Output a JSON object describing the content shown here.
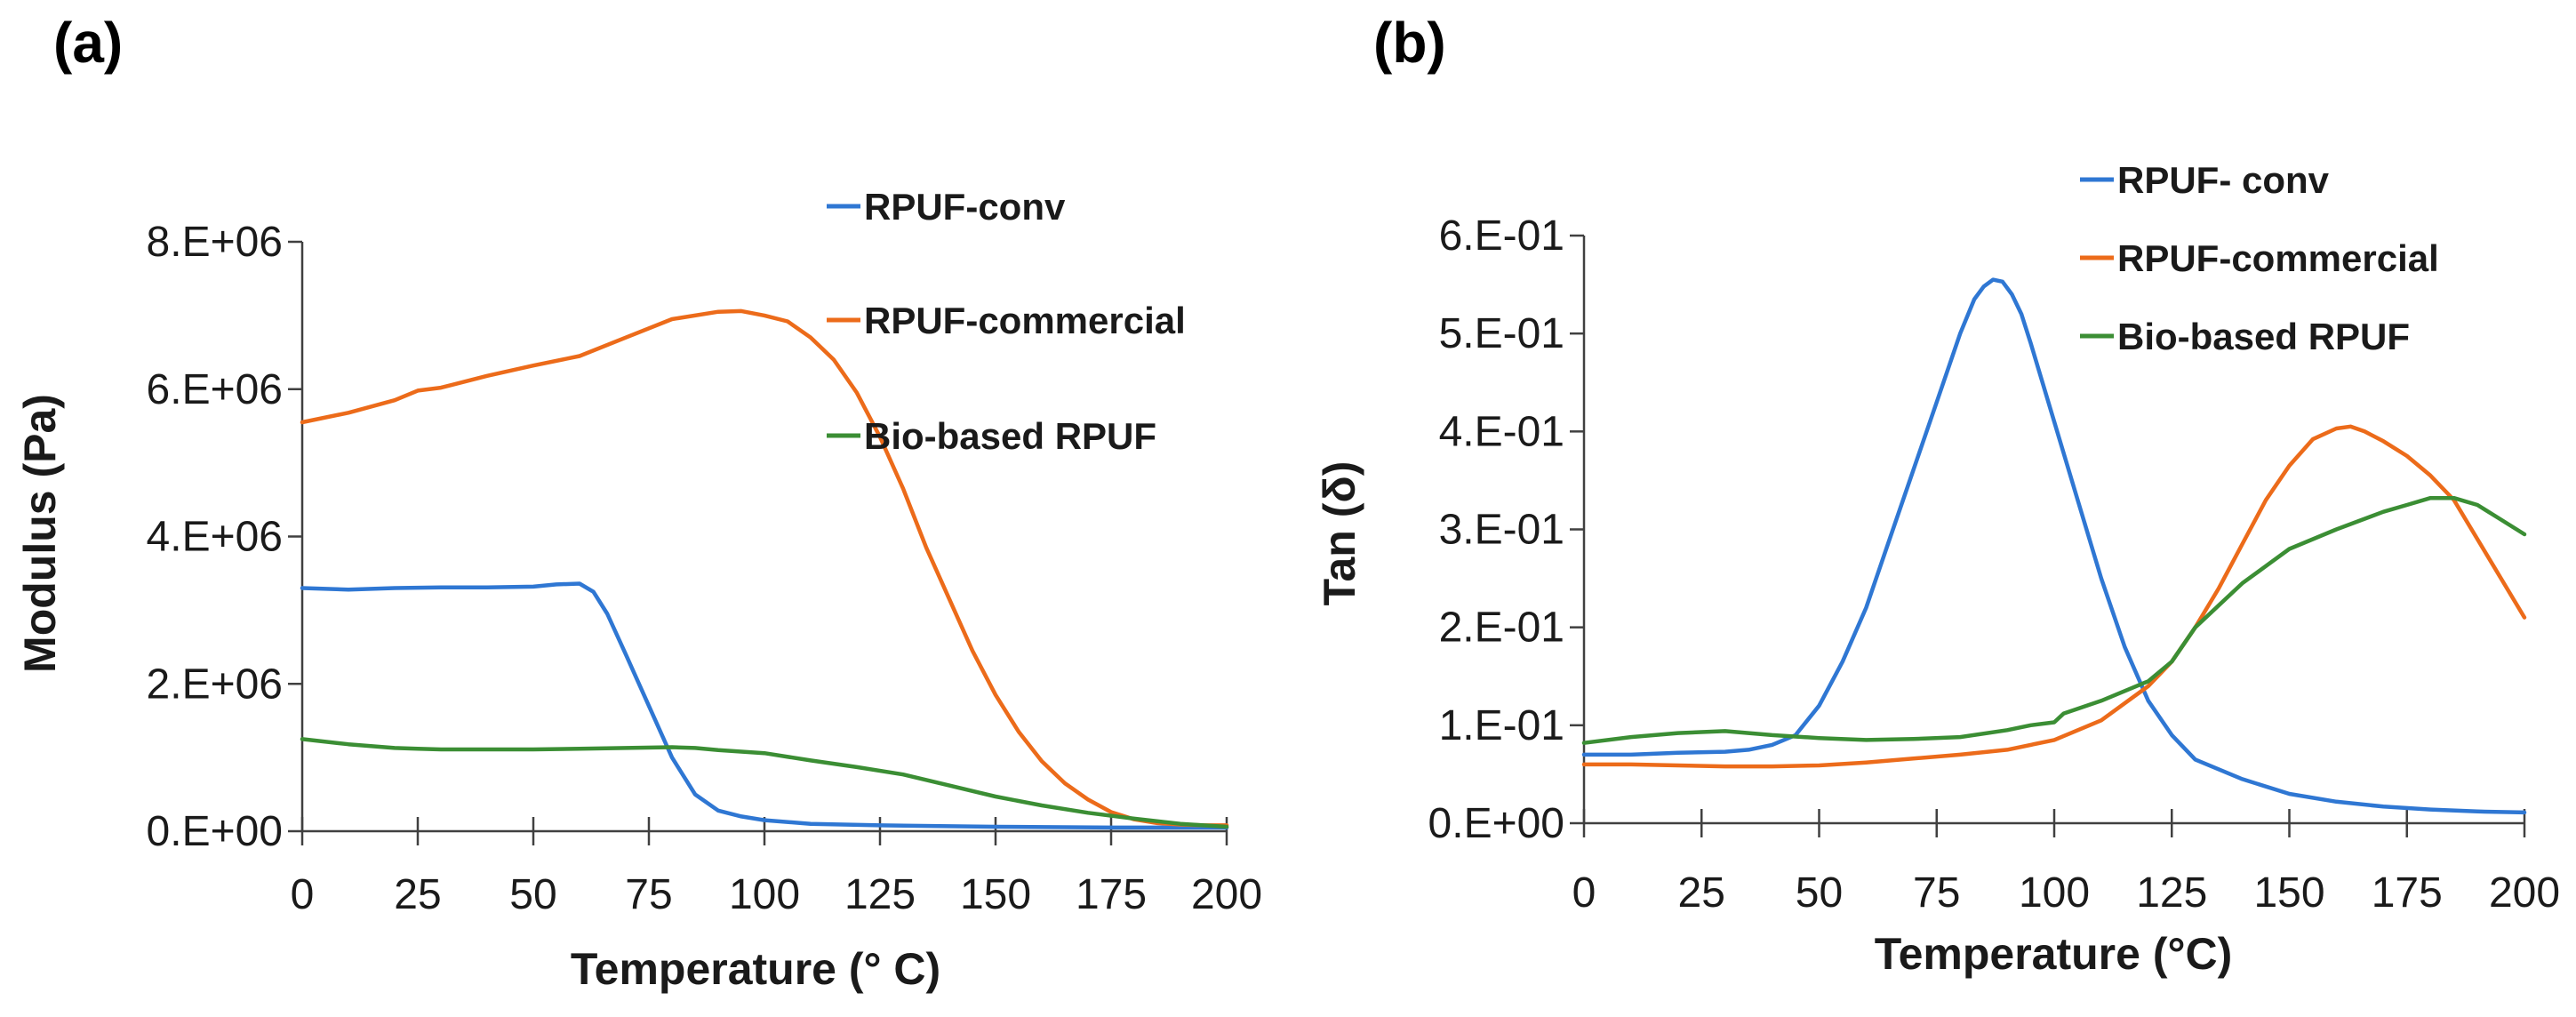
{
  "chart_data": [
    {
      "panel": "(a)",
      "type": "line",
      "title": "",
      "xlabel": "Temperature (° C)",
      "ylabel": "Modulus (Pa)",
      "xlim": [
        0,
        200
      ],
      "ylim": [
        0,
        8000000
      ],
      "xticks": [
        0,
        25,
        50,
        75,
        100,
        125,
        150,
        175,
        200
      ],
      "xtick_labels": [
        "0",
        "25",
        "50",
        "75",
        "100",
        "125",
        "150",
        "175",
        "200"
      ],
      "yticks": [
        0,
        2000000,
        4000000,
        6000000,
        8000000
      ],
      "ytick_labels": [
        "0.E+00",
        "2.E+06",
        "4.E+06",
        "6.E+06",
        "8.E+06"
      ],
      "legend_position": "top-right",
      "series": [
        {
          "name": "RPUF-conv",
          "color": "#2f77d3",
          "x": [
            0,
            10,
            20,
            30,
            40,
            50,
            55,
            60,
            63,
            66,
            70,
            75,
            80,
            85,
            90,
            95,
            100,
            110,
            125,
            150,
            175,
            200
          ],
          "y": [
            3300000,
            3280000,
            3300000,
            3310000,
            3310000,
            3320000,
            3350000,
            3360000,
            3250000,
            2950000,
            2400000,
            1700000,
            1000000,
            500000,
            280000,
            200000,
            150000,
            100000,
            80000,
            60000,
            50000,
            50000
          ]
        },
        {
          "name": "RPUF-commercial",
          "color": "#ec6b1a",
          "x": [
            0,
            10,
            20,
            25,
            30,
            40,
            50,
            60,
            70,
            80,
            90,
            95,
            100,
            105,
            110,
            115,
            120,
            125,
            130,
            135,
            140,
            145,
            150,
            155,
            160,
            165,
            170,
            175,
            180,
            185,
            190,
            195,
            200
          ],
          "y": [
            5550000,
            5680000,
            5850000,
            5980000,
            6020000,
            6180000,
            6320000,
            6450000,
            6700000,
            6950000,
            7050000,
            7060000,
            7000000,
            6920000,
            6700000,
            6400000,
            5950000,
            5350000,
            4650000,
            3850000,
            3150000,
            2450000,
            1850000,
            1350000,
            950000,
            650000,
            430000,
            260000,
            160000,
            110000,
            90000,
            80000,
            80000
          ]
        },
        {
          "name": "Bio-based RPUF",
          "color": "#3b8e34",
          "x": [
            0,
            10,
            20,
            25,
            30,
            40,
            50,
            60,
            70,
            80,
            85,
            90,
            95,
            100,
            110,
            120,
            130,
            140,
            150,
            160,
            170,
            180,
            190,
            200
          ],
          "y": [
            1250000,
            1180000,
            1130000,
            1120000,
            1110000,
            1110000,
            1110000,
            1120000,
            1130000,
            1140000,
            1130000,
            1100000,
            1080000,
            1060000,
            960000,
            870000,
            770000,
            620000,
            470000,
            350000,
            250000,
            170000,
            100000,
            60000
          ]
        }
      ]
    },
    {
      "panel": "(b)",
      "type": "line",
      "title": "",
      "xlabel": "Temperature (°C)",
      "ylabel": "Tan (δ)",
      "xlim": [
        0,
        200
      ],
      "ylim": [
        0,
        0.6
      ],
      "xticks": [
        0,
        25,
        50,
        75,
        100,
        125,
        150,
        175,
        200
      ],
      "xtick_labels": [
        "0",
        "25",
        "50",
        "75",
        "100",
        "125",
        "150",
        "175",
        "200"
      ],
      "yticks": [
        0,
        0.1,
        0.2,
        0.3,
        0.4,
        0.5,
        0.6
      ],
      "ytick_labels": [
        "0.E+00",
        "1.E-01",
        "2.E-01",
        "3.E-01",
        "4.E-01",
        "5.E-01",
        "6.E-01"
      ],
      "legend_position": "top-right",
      "series": [
        {
          "name": "RPUF- conv",
          "color": "#2f77d3",
          "x": [
            0,
            10,
            20,
            30,
            35,
            40,
            45,
            50,
            55,
            60,
            65,
            70,
            75,
            80,
            83,
            85,
            87,
            89,
            91,
            93,
            95,
            100,
            105,
            110,
            115,
            120,
            125,
            130,
            140,
            150,
            160,
            170,
            180,
            190,
            200
          ],
          "y": [
            0.07,
            0.07,
            0.072,
            0.073,
            0.075,
            0.08,
            0.09,
            0.12,
            0.165,
            0.22,
            0.29,
            0.36,
            0.43,
            0.5,
            0.535,
            0.548,
            0.555,
            0.553,
            0.54,
            0.52,
            0.49,
            0.41,
            0.33,
            0.25,
            0.18,
            0.125,
            0.09,
            0.065,
            0.045,
            0.03,
            0.022,
            0.017,
            0.014,
            0.012,
            0.011
          ]
        },
        {
          "name": "RPUF-commercial",
          "color": "#ec6b1a",
          "x": [
            0,
            10,
            20,
            30,
            40,
            50,
            60,
            70,
            80,
            90,
            100,
            110,
            120,
            125,
            130,
            135,
            140,
            145,
            150,
            155,
            160,
            163,
            166,
            170,
            175,
            180,
            185,
            190,
            195,
            200
          ],
          "y": [
            0.06,
            0.06,
            0.059,
            0.058,
            0.058,
            0.059,
            0.062,
            0.066,
            0.07,
            0.075,
            0.085,
            0.105,
            0.14,
            0.165,
            0.2,
            0.24,
            0.285,
            0.33,
            0.365,
            0.392,
            0.403,
            0.405,
            0.4,
            0.39,
            0.375,
            0.355,
            0.33,
            0.29,
            0.25,
            0.21
          ]
        },
        {
          "name": "Bio-based RPUF",
          "color": "#3b8e34",
          "x": [
            0,
            10,
            20,
            30,
            40,
            50,
            60,
            70,
            80,
            90,
            95,
            100,
            102,
            110,
            120,
            125,
            130,
            140,
            150,
            160,
            170,
            175,
            180,
            185,
            190,
            195,
            200
          ],
          "y": [
            0.082,
            0.088,
            0.092,
            0.094,
            0.09,
            0.087,
            0.085,
            0.086,
            0.088,
            0.095,
            0.1,
            0.103,
            0.112,
            0.125,
            0.145,
            0.165,
            0.2,
            0.245,
            0.28,
            0.3,
            0.318,
            0.325,
            0.332,
            0.332,
            0.325,
            0.31,
            0.295
          ]
        }
      ]
    }
  ]
}
